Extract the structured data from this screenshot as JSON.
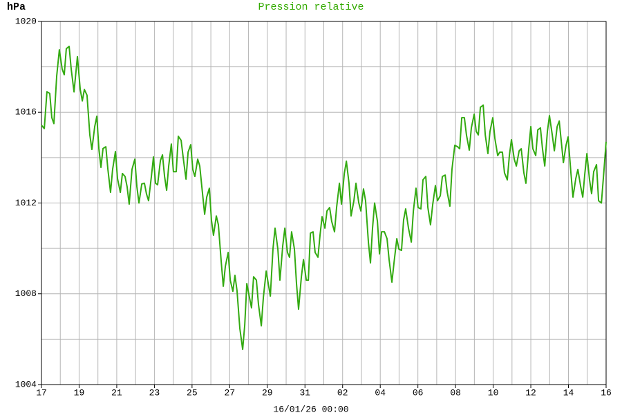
{
  "chart_data": {
    "type": "line",
    "title": "Pression relative",
    "y_label": "hPa",
    "x_label": "16/01/26 00:00",
    "color": "#33aa11",
    "grid": true,
    "xlim": [
      0,
      30
    ],
    "xticks": [
      {
        "value": 0,
        "label": "17"
      },
      {
        "value": 2,
        "label": "19"
      },
      {
        "value": 4,
        "label": "21"
      },
      {
        "value": 6,
        "label": "23"
      },
      {
        "value": 8,
        "label": "25"
      },
      {
        "value": 10,
        "label": "27"
      },
      {
        "value": 12,
        "label": "29"
      },
      {
        "value": 14,
        "label": "31"
      },
      {
        "value": 16,
        "label": "02"
      },
      {
        "value": 18,
        "label": "04"
      },
      {
        "value": 20,
        "label": "06"
      },
      {
        "value": 22,
        "label": "08"
      },
      {
        "value": 24,
        "label": "10"
      },
      {
        "value": 26,
        "label": "12"
      },
      {
        "value": 28,
        "label": "14"
      },
      {
        "value": 30,
        "label": "16"
      }
    ],
    "x_minor_ticks": [
      1,
      3,
      5,
      7,
      9,
      11,
      13,
      15,
      17,
      19,
      21,
      23,
      25,
      27,
      29
    ],
    "ylim": [
      1004,
      1020
    ],
    "yticks": [
      1004,
      1008,
      1012,
      1016,
      1020
    ],
    "y_minor_ticks": [
      1006,
      1010,
      1014,
      1018
    ],
    "x": [
      0,
      0.15,
      0.29,
      0.44,
      0.55,
      0.66,
      0.81,
      0.95,
      1.1,
      1.21,
      1.32,
      1.47,
      1.58,
      1.73,
      1.91,
      2.06,
      2.17,
      2.28,
      2.42,
      2.57,
      2.68,
      2.83,
      2.94,
      3.05,
      3.16,
      3.27,
      3.42,
      3.53,
      3.67,
      3.78,
      3.93,
      4.04,
      4.19,
      4.3,
      4.44,
      4.55,
      4.66,
      4.81,
      4.96,
      5.07,
      5.18,
      5.33,
      5.47,
      5.58,
      5.69,
      5.84,
      5.95,
      6.06,
      6.17,
      6.32,
      6.43,
      6.54,
      6.65,
      6.76,
      6.9,
      7.01,
      7.16,
      7.27,
      7.42,
      7.53,
      7.68,
      7.79,
      7.93,
      8.04,
      8.15,
      8.3,
      8.41,
      8.52,
      8.67,
      8.78,
      8.92,
      9.03,
      9.14,
      9.29,
      9.4,
      9.55,
      9.66,
      9.77,
      9.92,
      10.03,
      10.17,
      10.28,
      10.39,
      10.54,
      10.69,
      10.8,
      10.91,
      11.05,
      11.16,
      11.27,
      11.42,
      11.53,
      11.68,
      11.79,
      11.94,
      12.05,
      12.16,
      12.3,
      12.41,
      12.56,
      12.67,
      12.82,
      12.93,
      13.07,
      13.18,
      13.29,
      13.44,
      13.55,
      13.66,
      13.81,
      13.92,
      14.07,
      14.18,
      14.29,
      14.43,
      14.54,
      14.69,
      14.8,
      14.91,
      15.06,
      15.17,
      15.31,
      15.42,
      15.57,
      15.68,
      15.83,
      15.94,
      16.09,
      16.2,
      16.34,
      16.45,
      16.6,
      16.71,
      16.86,
      16.97,
      17.11,
      17.22,
      17.37,
      17.48,
      17.59,
      17.7,
      17.85,
      17.96,
      18.07,
      18.22,
      18.36,
      18.47,
      18.62,
      18.73,
      18.88,
      18.99,
      19.13,
      19.24,
      19.35,
      19.5,
      19.65,
      19.76,
      19.9,
      20.01,
      20.16,
      20.27,
      20.42,
      20.53,
      20.67,
      20.79,
      20.93,
      21.04,
      21.19,
      21.3,
      21.45,
      21.56,
      21.7,
      21.81,
      21.96,
      22.11,
      22.22,
      22.33,
      22.47,
      22.58,
      22.73,
      22.84,
      22.99,
      23.1,
      23.21,
      23.32,
      23.47,
      23.58,
      23.72,
      23.83,
      23.98,
      24.09,
      24.24,
      24.35,
      24.49,
      24.6,
      24.75,
      24.86,
      24.97,
      25.12,
      25.23,
      25.38,
      25.49,
      25.63,
      25.74,
      25.89,
      26.0,
      26.11,
      26.26,
      26.37,
      26.51,
      26.62,
      26.74,
      26.88,
      26.99,
      27.14,
      27.25,
      27.4,
      27.51,
      27.62,
      27.73,
      27.87,
      27.98,
      28.13,
      28.24,
      28.39,
      28.5,
      28.65,
      28.76,
      28.87,
      28.98,
      29.12,
      29.23,
      29.34,
      29.49,
      29.6,
      29.75,
      29.89,
      30.0
    ],
    "values": [
      1015.43,
      1015.28,
      1016.9,
      1016.83,
      1015.76,
      1015.5,
      1017.6,
      1018.75,
      1017.9,
      1017.65,
      1018.8,
      1018.9,
      1017.9,
      1016.9,
      1018.45,
      1017.0,
      1016.5,
      1017.0,
      1016.75,
      1015.0,
      1014.36,
      1015.37,
      1015.82,
      1014.4,
      1013.57,
      1014.4,
      1014.48,
      1013.48,
      1012.47,
      1013.48,
      1014.27,
      1013.08,
      1012.47,
      1013.3,
      1013.17,
      1012.72,
      1011.95,
      1013.48,
      1013.93,
      1012.72,
      1012.0,
      1012.84,
      1012.87,
      1012.4,
      1012.1,
      1013.17,
      1014.03,
      1012.87,
      1012.8,
      1013.87,
      1014.12,
      1013.17,
      1012.56,
      1013.63,
      1014.6,
      1013.38,
      1013.38,
      1014.94,
      1014.76,
      1014.0,
      1013.05,
      1014.24,
      1014.57,
      1013.48,
      1013.17,
      1013.93,
      1013.63,
      1012.72,
      1011.5,
      1012.26,
      1012.65,
      1011.25,
      1010.58,
      1011.43,
      1011.04,
      1009.42,
      1008.33,
      1009.21,
      1009.82,
      1008.6,
      1008.11,
      1008.81,
      1008.14,
      1006.47,
      1005.55,
      1006.62,
      1008.45,
      1007.84,
      1007.38,
      1008.75,
      1008.6,
      1007.53,
      1006.59,
      1007.84,
      1009.0,
      1008.45,
      1007.9,
      1009.97,
      1010.89,
      1009.97,
      1008.6,
      1010.12,
      1010.89,
      1009.82,
      1009.61,
      1010.73,
      1009.97,
      1008.45,
      1007.32,
      1008.75,
      1009.51,
      1008.6,
      1008.6,
      1010.67,
      1010.73,
      1009.82,
      1009.61,
      1010.58,
      1011.4,
      1010.89,
      1011.65,
      1011.8,
      1011.19,
      1010.73,
      1011.8,
      1012.87,
      1011.95,
      1013.3,
      1013.84,
      1012.87,
      1011.43,
      1012.1,
      1012.87,
      1012.0,
      1011.65,
      1012.62,
      1012.1,
      1010.28,
      1009.36,
      1010.89,
      1012.0,
      1011.19,
      1009.76,
      1010.73,
      1010.73,
      1010.43,
      1009.51,
      1008.51,
      1009.36,
      1010.43,
      1009.97,
      1009.91,
      1011.25,
      1011.74,
      1010.89,
      1010.28,
      1011.65,
      1012.65,
      1011.8,
      1011.74,
      1013.02,
      1013.17,
      1011.8,
      1011.04,
      1011.95,
      1012.77,
      1012.1,
      1012.32,
      1013.17,
      1013.23,
      1012.47,
      1011.86,
      1013.48,
      1014.54,
      1014.48,
      1014.39,
      1015.76,
      1015.76,
      1015.0,
      1014.33,
      1015.31,
      1015.91,
      1015.15,
      1015.0,
      1016.22,
      1016.31,
      1015.0,
      1014.18,
      1015.15,
      1015.76,
      1014.85,
      1014.09,
      1014.24,
      1014.24,
      1013.33,
      1013.02,
      1014.09,
      1014.79,
      1013.93,
      1013.63,
      1014.3,
      1014.39,
      1013.33,
      1012.87,
      1014.39,
      1015.37,
      1014.39,
      1014.09,
      1015.22,
      1015.31,
      1014.39,
      1013.63,
      1015.15,
      1015.85,
      1015.0,
      1014.3,
      1015.37,
      1015.61,
      1014.7,
      1013.78,
      1014.54,
      1014.91,
      1013.33,
      1012.26,
      1013.08,
      1013.48,
      1012.72,
      1012.26,
      1013.3,
      1014.18,
      1013.02,
      1012.41,
      1013.38,
      1013.69,
      1012.1,
      1012.0,
      1013.48,
      1014.7
    ]
  }
}
